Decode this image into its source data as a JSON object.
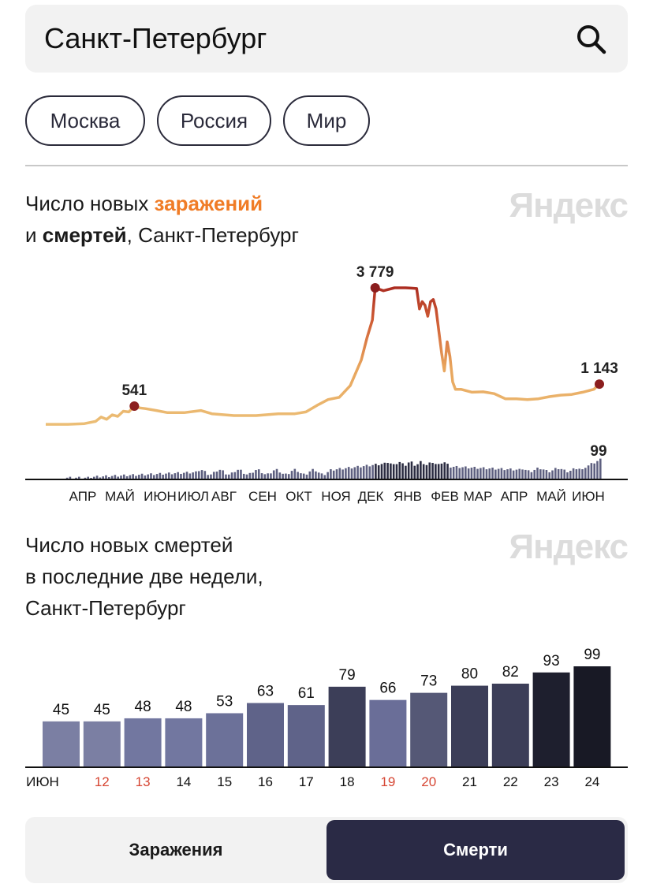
{
  "search": {
    "value": "Санкт-Петербург"
  },
  "chips": [
    "Москва",
    "Россия",
    "Мир"
  ],
  "chart1": {
    "title_part1": "Число новых ",
    "title_accent": "заражений",
    "title_part2": "и ",
    "title_bold": "смертей",
    "title_part3": ", Санкт-Петербург",
    "watermark": "Яндекс"
  },
  "chart2": {
    "title_line1": "Число новых смертей",
    "title_line2": "в последние две недели,",
    "title_line3": "Санкт-Петербург",
    "watermark": "Яндекс"
  },
  "tabs": {
    "infections": "Заражения",
    "deaths": "Смерти"
  },
  "colors": {
    "infections_low": "#ecc27a",
    "infections_high": "#b03020",
    "marker": "#8b1e1e",
    "death_bar": "#4b4d68",
    "weekend_label": "#d64532",
    "tab_active": "#2a2a45"
  },
  "chart_data": [
    {
      "type": "line",
      "series": [
        {
          "name": "заражения",
          "months_axis": [
            "АПР",
            "МАЙ",
            "ИЮН",
            "ИЮЛ",
            "АВГ",
            "СЕН",
            "ОКТ",
            "НОЯ",
            "ДЕК",
            "ЯНВ",
            "ФЕВ",
            "МАР",
            "АПР",
            "МАЙ",
            "ИЮН"
          ],
          "points": [
            [
              0.0,
              40
            ],
            [
              0.04,
              40
            ],
            [
              0.07,
              60
            ],
            [
              0.09,
              120
            ],
            [
              0.1,
              240
            ],
            [
              0.11,
              180
            ],
            [
              0.12,
              300
            ],
            [
              0.13,
              260
            ],
            [
              0.14,
              400
            ],
            [
              0.15,
              380
            ],
            [
              0.16,
              541
            ],
            [
              0.17,
              490
            ],
            [
              0.18,
              470
            ],
            [
              0.2,
              420
            ],
            [
              0.22,
              360
            ],
            [
              0.25,
              360
            ],
            [
              0.28,
              420
            ],
            [
              0.3,
              330
            ],
            [
              0.34,
              280
            ],
            [
              0.38,
              280
            ],
            [
              0.42,
              330
            ],
            [
              0.45,
              330
            ],
            [
              0.47,
              380
            ],
            [
              0.49,
              560
            ],
            [
              0.51,
              720
            ],
            [
              0.53,
              780
            ],
            [
              0.55,
              1100
            ],
            [
              0.57,
              1800
            ],
            [
              0.58,
              2400
            ],
            [
              0.59,
              2900
            ],
            [
              0.595,
              3779
            ],
            [
              0.61,
              3700
            ],
            [
              0.63,
              3779
            ],
            [
              0.65,
              3779
            ],
            [
              0.66,
              3770
            ],
            [
              0.67,
              3760
            ],
            [
              0.675,
              3200
            ],
            [
              0.68,
              3400
            ],
            [
              0.685,
              3300
            ],
            [
              0.69,
              3000
            ],
            [
              0.695,
              3400
            ],
            [
              0.7,
              3460
            ],
            [
              0.705,
              3200
            ],
            [
              0.71,
              2600
            ],
            [
              0.715,
              2000
            ],
            [
              0.72,
              1500
            ],
            [
              0.725,
              2300
            ],
            [
              0.73,
              1900
            ],
            [
              0.735,
              1200
            ],
            [
              0.74,
              1000
            ],
            [
              0.75,
              1000
            ],
            [
              0.77,
              920
            ],
            [
              0.79,
              930
            ],
            [
              0.81,
              880
            ],
            [
              0.83,
              740
            ],
            [
              0.85,
              740
            ],
            [
              0.87,
              720
            ],
            [
              0.89,
              740
            ],
            [
              0.91,
              800
            ],
            [
              0.93,
              840
            ],
            [
              0.95,
              860
            ],
            [
              0.97,
              920
            ],
            [
              0.99,
              1000
            ],
            [
              1.0,
              1143
            ]
          ],
          "labels": [
            {
              "value": "541"
            },
            {
              "value": "3 779"
            },
            {
              "value": "1 143"
            }
          ]
        }
      ],
      "deaths_mini_bars_last": "99"
    },
    {
      "type": "bar",
      "categories": [
        "ИЮН",
        "12",
        "13",
        "14",
        "15",
        "16",
        "17",
        "18",
        "19",
        "20",
        "21",
        "22",
        "23",
        "24"
      ],
      "weekend_flags": [
        false,
        true,
        true,
        false,
        false,
        false,
        false,
        false,
        true,
        true,
        false,
        false,
        false,
        false
      ],
      "values": [
        45,
        45,
        48,
        48,
        53,
        63,
        61,
        79,
        66,
        73,
        80,
        82,
        93,
        99
      ],
      "ylim": [
        0,
        110
      ]
    }
  ]
}
